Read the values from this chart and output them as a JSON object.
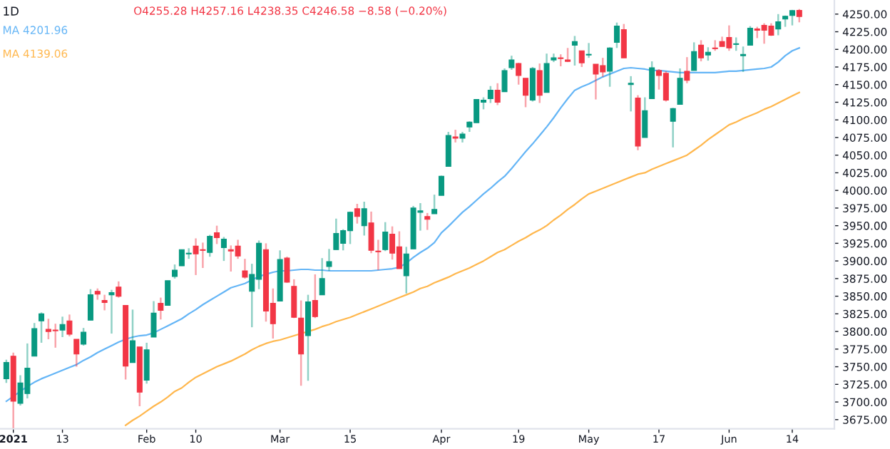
{
  "chart_data": {
    "type": "candlestick",
    "title": "1D",
    "annotations": [
      "O4255.28 H4257.16 L4238.35 C4246.58 −8.58 (−0.20%)"
    ],
    "categories": [
      null,
      "2021",
      null,
      null,
      null,
      null,
      null,
      null,
      "13",
      null,
      null,
      null,
      null,
      null,
      null,
      null,
      null,
      null,
      null,
      null,
      "Feb",
      null,
      null,
      null,
      null,
      null,
      null,
      "10",
      null,
      null,
      null,
      null,
      null,
      null,
      null,
      null,
      null,
      null,
      null,
      "Mar",
      null,
      null,
      null,
      null,
      null,
      null,
      null,
      null,
      null,
      "15",
      null,
      null,
      null,
      null,
      null,
      null,
      null,
      null,
      null,
      null,
      null,
      null,
      "Apr",
      null,
      null,
      null,
      null,
      null,
      null,
      null,
      null,
      null,
      null,
      "19",
      null,
      null,
      null,
      null,
      null,
      null,
      null,
      null,
      null,
      "May",
      null,
      null,
      null,
      null,
      null,
      null,
      null,
      null,
      null,
      "17",
      null,
      null,
      null,
      null,
      null,
      null,
      null,
      null,
      null,
      "Jun",
      null,
      null,
      null,
      null,
      null,
      null,
      null,
      null,
      "14",
      null
    ],
    "ohlc": [
      [
        3733,
        3760,
        3727,
        3756
      ],
      [
        3765,
        3770,
        3663,
        3701
      ],
      [
        3698,
        3738,
        3695,
        3727
      ],
      [
        3712,
        3783,
        3705,
        3748
      ],
      [
        3765,
        3812,
        3765,
        3804
      ],
      [
        3815,
        3827,
        3784,
        3825
      ],
      [
        3803,
        3818,
        3789,
        3800
      ],
      [
        3802,
        3811,
        3777,
        3801
      ],
      [
        3802,
        3821,
        3792,
        3810
      ],
      [
        3815,
        3824,
        3793,
        3796
      ],
      [
        3789,
        3789,
        3750,
        3768
      ],
      [
        3782,
        3805,
        3780,
        3799
      ],
      [
        3816,
        3860,
        3816,
        3852
      ],
      [
        3857,
        3861,
        3845,
        3853
      ],
      [
        3844,
        3852,
        3830,
        3841
      ],
      [
        3852,
        3859,
        3797,
        3855
      ],
      [
        3863,
        3871,
        3848,
        3850
      ],
      [
        3837,
        3837,
        3732,
        3751
      ],
      [
        3756,
        3831,
        3756,
        3787
      ],
      [
        3778,
        3778,
        3694,
        3714
      ],
      [
        3731,
        3784,
        3726,
        3774
      ],
      [
        3792,
        3843,
        3792,
        3826
      ],
      [
        3840,
        3848,
        3817,
        3830
      ],
      [
        3837,
        3872,
        3837,
        3872
      ],
      [
        3878,
        3895,
        3875,
        3887
      ],
      [
        3893,
        3916,
        3893,
        3916
      ],
      [
        3910,
        3918,
        3903,
        3911
      ],
      [
        3921,
        3932,
        3880,
        3910
      ],
      [
        3916,
        3926,
        3890,
        3915
      ],
      [
        3912,
        3937,
        3906,
        3935
      ],
      [
        3940,
        3950,
        3924,
        3933
      ],
      [
        3919,
        3934,
        3900,
        3931
      ],
      [
        3916,
        3922,
        3885,
        3914
      ],
      [
        3921,
        3930,
        3903,
        3907
      ],
      [
        3886,
        3903,
        3875,
        3877
      ],
      [
        3857,
        3896,
        3806,
        3881
      ],
      [
        3874,
        3929,
        3860,
        3925
      ],
      [
        3916,
        3925,
        3814,
        3829
      ],
      [
        3840,
        3861,
        3790,
        3811
      ],
      [
        3843,
        3915,
        3843,
        3902
      ],
      [
        3904,
        3906,
        3869,
        3870
      ],
      [
        3864,
        3874,
        3819,
        3820
      ],
      [
        3819,
        3844,
        3723,
        3768
      ],
      [
        3794,
        3852,
        3730,
        3842
      ],
      [
        3844,
        3881,
        3819,
        3821
      ],
      [
        3852,
        3904,
        3852,
        3875
      ],
      [
        3892,
        3917,
        3886,
        3899
      ],
      [
        3916,
        3960,
        3916,
        3939
      ],
      [
        3925,
        3945,
        3915,
        3943
      ],
      [
        3943,
        3970,
        3924,
        3969
      ],
      [
        3974,
        3981,
        3953,
        3963
      ],
      [
        3950,
        3984,
        3936,
        3974
      ],
      [
        3954,
        3970,
        3911,
        3915
      ],
      [
        3914,
        3930,
        3887,
        3913
      ],
      [
        3916,
        3955,
        3914,
        3941
      ],
      [
        3938,
        3949,
        3902,
        3911
      ],
      [
        3920,
        3942,
        3889,
        3889
      ],
      [
        3879,
        3920,
        3854,
        3910
      ],
      [
        3917,
        3978,
        3917,
        3975
      ],
      [
        3969,
        3982,
        3943,
        3971
      ],
      [
        3963,
        3968,
        3944,
        3959
      ],
      [
        3967,
        3994,
        3967,
        3973
      ],
      [
        3993,
        4021,
        3993,
        4020
      ],
      [
        4034,
        4083,
        4034,
        4078
      ],
      [
        4076,
        4086,
        4068,
        4074
      ],
      [
        4074,
        4083,
        4068,
        4080
      ],
      [
        4090,
        4098,
        4083,
        4097
      ],
      [
        4096,
        4129,
        4096,
        4129
      ],
      [
        4125,
        4132,
        4115,
        4128
      ],
      [
        4130,
        4148,
        4124,
        4142
      ],
      [
        4142,
        4152,
        4121,
        4125
      ],
      [
        4140,
        4173,
        4140,
        4170
      ],
      [
        4174,
        4191,
        4171,
        4185
      ],
      [
        4180,
        4181,
        4150,
        4163
      ],
      [
        4159,
        4159,
        4118,
        4135
      ],
      [
        4128,
        4175,
        4126,
        4173
      ],
      [
        4170,
        4180,
        4124,
        4135
      ],
      [
        4139,
        4194,
        4139,
        4180
      ],
      [
        4185,
        4194,
        4182,
        4188
      ],
      [
        4188,
        4193,
        4176,
        4187
      ],
      [
        4185,
        4202,
        4182,
        4183
      ],
      [
        4206,
        4219,
        4177,
        4211
      ],
      [
        4198,
        4198,
        4175,
        4181
      ],
      [
        4192,
        4209,
        4188,
        4193
      ],
      [
        4179,
        4179,
        4129,
        4165
      ],
      [
        4177,
        4188,
        4161,
        4168
      ],
      [
        4169,
        4203,
        4147,
        4202
      ],
      [
        4210,
        4238,
        4202,
        4233
      ],
      [
        4228,
        4236,
        4188,
        4188
      ],
      [
        4150,
        4162,
        4112,
        4152
      ],
      [
        4131,
        4135,
        4057,
        4063
      ],
      [
        4075,
        4132,
        4075,
        4113
      ],
      [
        4130,
        4183,
        4130,
        4174
      ],
      [
        4170,
        4172,
        4143,
        4163
      ],
      [
        4166,
        4169,
        4126,
        4128
      ],
      [
        4098,
        4117,
        4061,
        4116
      ],
      [
        4122,
        4173,
        4122,
        4159
      ],
      [
        4169,
        4189,
        4152,
        4156
      ],
      [
        4170,
        4210,
        4170,
        4197
      ],
      [
        4206,
        4213,
        4183,
        4188
      ],
      [
        4192,
        4203,
        4184,
        4196
      ],
      [
        4202,
        4213,
        4198,
        4201
      ],
      [
        4211,
        4218,
        4204,
        4204
      ],
      [
        4217,
        4234,
        4198,
        4202
      ],
      [
        4207,
        4217,
        4198,
        4208
      ],
      [
        4191,
        4204,
        4168,
        4193
      ],
      [
        4206,
        4233,
        4206,
        4230
      ],
      [
        4229,
        4232,
        4216,
        4227
      ],
      [
        4234,
        4237,
        4208,
        4227
      ],
      [
        4233,
        4237,
        4219,
        4220
      ],
      [
        4229,
        4250,
        4220,
        4239
      ],
      [
        4243,
        4248,
        4232,
        4247
      ],
      [
        4248,
        4256,
        4234,
        4255
      ],
      [
        4255.28,
        4257.16,
        4238.35,
        4246.58
      ]
    ],
    "colors": [
      "#089981",
      "#f23645",
      "#089981",
      "#089981",
      "#089981",
      "#089981",
      "#f23645",
      "#f23645",
      "#089981",
      "#f23645",
      "#f23645",
      "#089981",
      "#089981",
      "#f23645",
      "#f23645",
      "#089981",
      "#f23645",
      "#f23645",
      "#089981",
      "#f23645",
      "#089981",
      "#089981",
      "#f23645",
      "#089981",
      "#089981",
      "#089981",
      "#089981",
      "#f23645",
      "#f23645",
      "#089981",
      "#f23645",
      "#089981",
      "#f23645",
      "#f23645",
      "#f23645",
      "#089981",
      "#089981",
      "#f23645",
      "#f23645",
      "#089981",
      "#f23645",
      "#f23645",
      "#f23645",
      "#089981",
      "#f23645",
      "#089981",
      "#089981",
      "#089981",
      "#089981",
      "#089981",
      "#f23645",
      "#089981",
      "#f23645",
      "#f23645",
      "#089981",
      "#f23645",
      "#f23645",
      "#089981",
      "#089981",
      "#089981",
      "#f23645",
      "#089981",
      "#089981",
      "#089981",
      "#f23645",
      "#089981",
      "#089981",
      "#089981",
      "#089981",
      "#089981",
      "#f23645",
      "#089981",
      "#089981",
      "#f23645",
      "#f23645",
      "#089981",
      "#f23645",
      "#089981",
      "#089981",
      "#f23645",
      "#f23645",
      "#089981",
      "#f23645",
      "#089981",
      "#f23645",
      "#f23645",
      "#089981",
      "#089981",
      "#f23645",
      "#089981",
      "#f23645",
      "#089981",
      "#089981",
      "#f23645",
      "#f23645",
      "#089981",
      "#089981",
      "#f23645",
      "#089981",
      "#f23645",
      "#089981",
      "#f23645",
      "#f23645",
      "#f23645",
      "#089981",
      "#089981",
      "#089981",
      "#f23645",
      "#f23645",
      "#f23645",
      "#089981",
      "#089981",
      "#089981",
      "#f23645"
    ],
    "series": [
      {
        "name": "MA 4201.96",
        "type": "line",
        "color": "#64b5f6",
        "values": [
          3701,
          3708,
          3715,
          3722,
          3728,
          3733,
          3737,
          3741,
          3745,
          3749,
          3753,
          3759,
          3764,
          3770,
          3775,
          3780,
          3785,
          3789,
          3792,
          3794,
          3795,
          3798,
          3803,
          3808,
          3813,
          3818,
          3825,
          3831,
          3838,
          3844,
          3850,
          3856,
          3862,
          3865,
          3868,
          3873,
          3878,
          3881,
          3884,
          3886,
          3886,
          3887,
          3888,
          3888,
          3887,
          3887,
          3886,
          3886,
          3886,
          3886,
          3886,
          3886,
          3886,
          3887,
          3888,
          3889,
          3891,
          3897,
          3905,
          3912,
          3918,
          3926,
          3940,
          3949,
          3959,
          3969,
          3977,
          3986,
          3995,
          4003,
          4012,
          4020,
          4031,
          4043,
          4055,
          4066,
          4078,
          4090,
          4103,
          4117,
          4130,
          4142,
          4147,
          4151,
          4156,
          4161,
          4165,
          4169,
          4173,
          4174,
          4173,
          4172,
          4170,
          4170,
          4169,
          4168,
          4167,
          4167,
          4167,
          4167,
          4167,
          4167,
          4168,
          4169,
          4169,
          4170,
          4171,
          4172,
          4173,
          4175,
          4182,
          4191,
          4198,
          4202
        ]
      },
      {
        "name": "MA 4139.06",
        "type": "line",
        "color": "#ffb74d",
        "values": [
          null,
          null,
          null,
          null,
          null,
          null,
          null,
          null,
          null,
          null,
          null,
          null,
          null,
          null,
          null,
          null,
          null,
          3667,
          3674,
          3680,
          3687,
          3694,
          3700,
          3707,
          3715,
          3720,
          3728,
          3735,
          3740,
          3745,
          3750,
          3754,
          3758,
          3763,
          3768,
          3774,
          3779,
          3783,
          3786,
          3788,
          3791,
          3794,
          3797,
          3800,
          3803,
          3807,
          3810,
          3814,
          3817,
          3820,
          3824,
          3828,
          3832,
          3836,
          3840,
          3844,
          3848,
          3852,
          3856,
          3861,
          3864,
          3869,
          3873,
          3877,
          3882,
          3886,
          3890,
          3895,
          3900,
          3906,
          3912,
          3916,
          3922,
          3928,
          3933,
          3939,
          3944,
          3950,
          3958,
          3965,
          3973,
          3980,
          3988,
          3995,
          3999,
          4003,
          4007,
          4011,
          4015,
          4019,
          4023,
          4025,
          4030,
          4034,
          4038,
          4042,
          4046,
          4050,
          4057,
          4064,
          4072,
          4079,
          4086,
          4093,
          4097,
          4102,
          4106,
          4110,
          4115,
          4119,
          4124,
          4129,
          4134,
          4139
        ]
      }
    ],
    "ylim": [
      3662,
      4270
    ],
    "yticks": [
      {
        "value": 3675,
        "label": "3675.00"
      },
      {
        "value": 3700,
        "label": "3700.00"
      },
      {
        "value": 3725,
        "label": "3725.00"
      },
      {
        "value": 3750,
        "label": "3750.00"
      },
      {
        "value": 3775,
        "label": "3775.00"
      },
      {
        "value": 3800,
        "label": "3800.00"
      },
      {
        "value": 3825,
        "label": "3825.00"
      },
      {
        "value": 3850,
        "label": "3850.00"
      },
      {
        "value": 3875,
        "label": "3875.00"
      },
      {
        "value": 3900,
        "label": "3900.00"
      },
      {
        "value": 3925,
        "label": "3925.00"
      },
      {
        "value": 3950,
        "label": "3950.00"
      },
      {
        "value": 3975,
        "label": "3975.00"
      },
      {
        "value": 4000,
        "label": "4000.00"
      },
      {
        "value": 4025,
        "label": "4025.00"
      },
      {
        "value": 4050,
        "label": "4050.00"
      },
      {
        "value": 4075,
        "label": "4075.00"
      },
      {
        "value": 4100,
        "label": "4100.00"
      },
      {
        "value": 4125,
        "label": "4125.00"
      },
      {
        "value": 4150,
        "label": "4150.00"
      },
      {
        "value": 4175,
        "label": "4175.00"
      },
      {
        "value": 4200,
        "label": "4200.00"
      },
      {
        "value": 4225,
        "label": "4225.00"
      },
      {
        "value": 4250,
        "label": "4250.00"
      }
    ],
    "legend": "top left",
    "grid": false
  }
}
